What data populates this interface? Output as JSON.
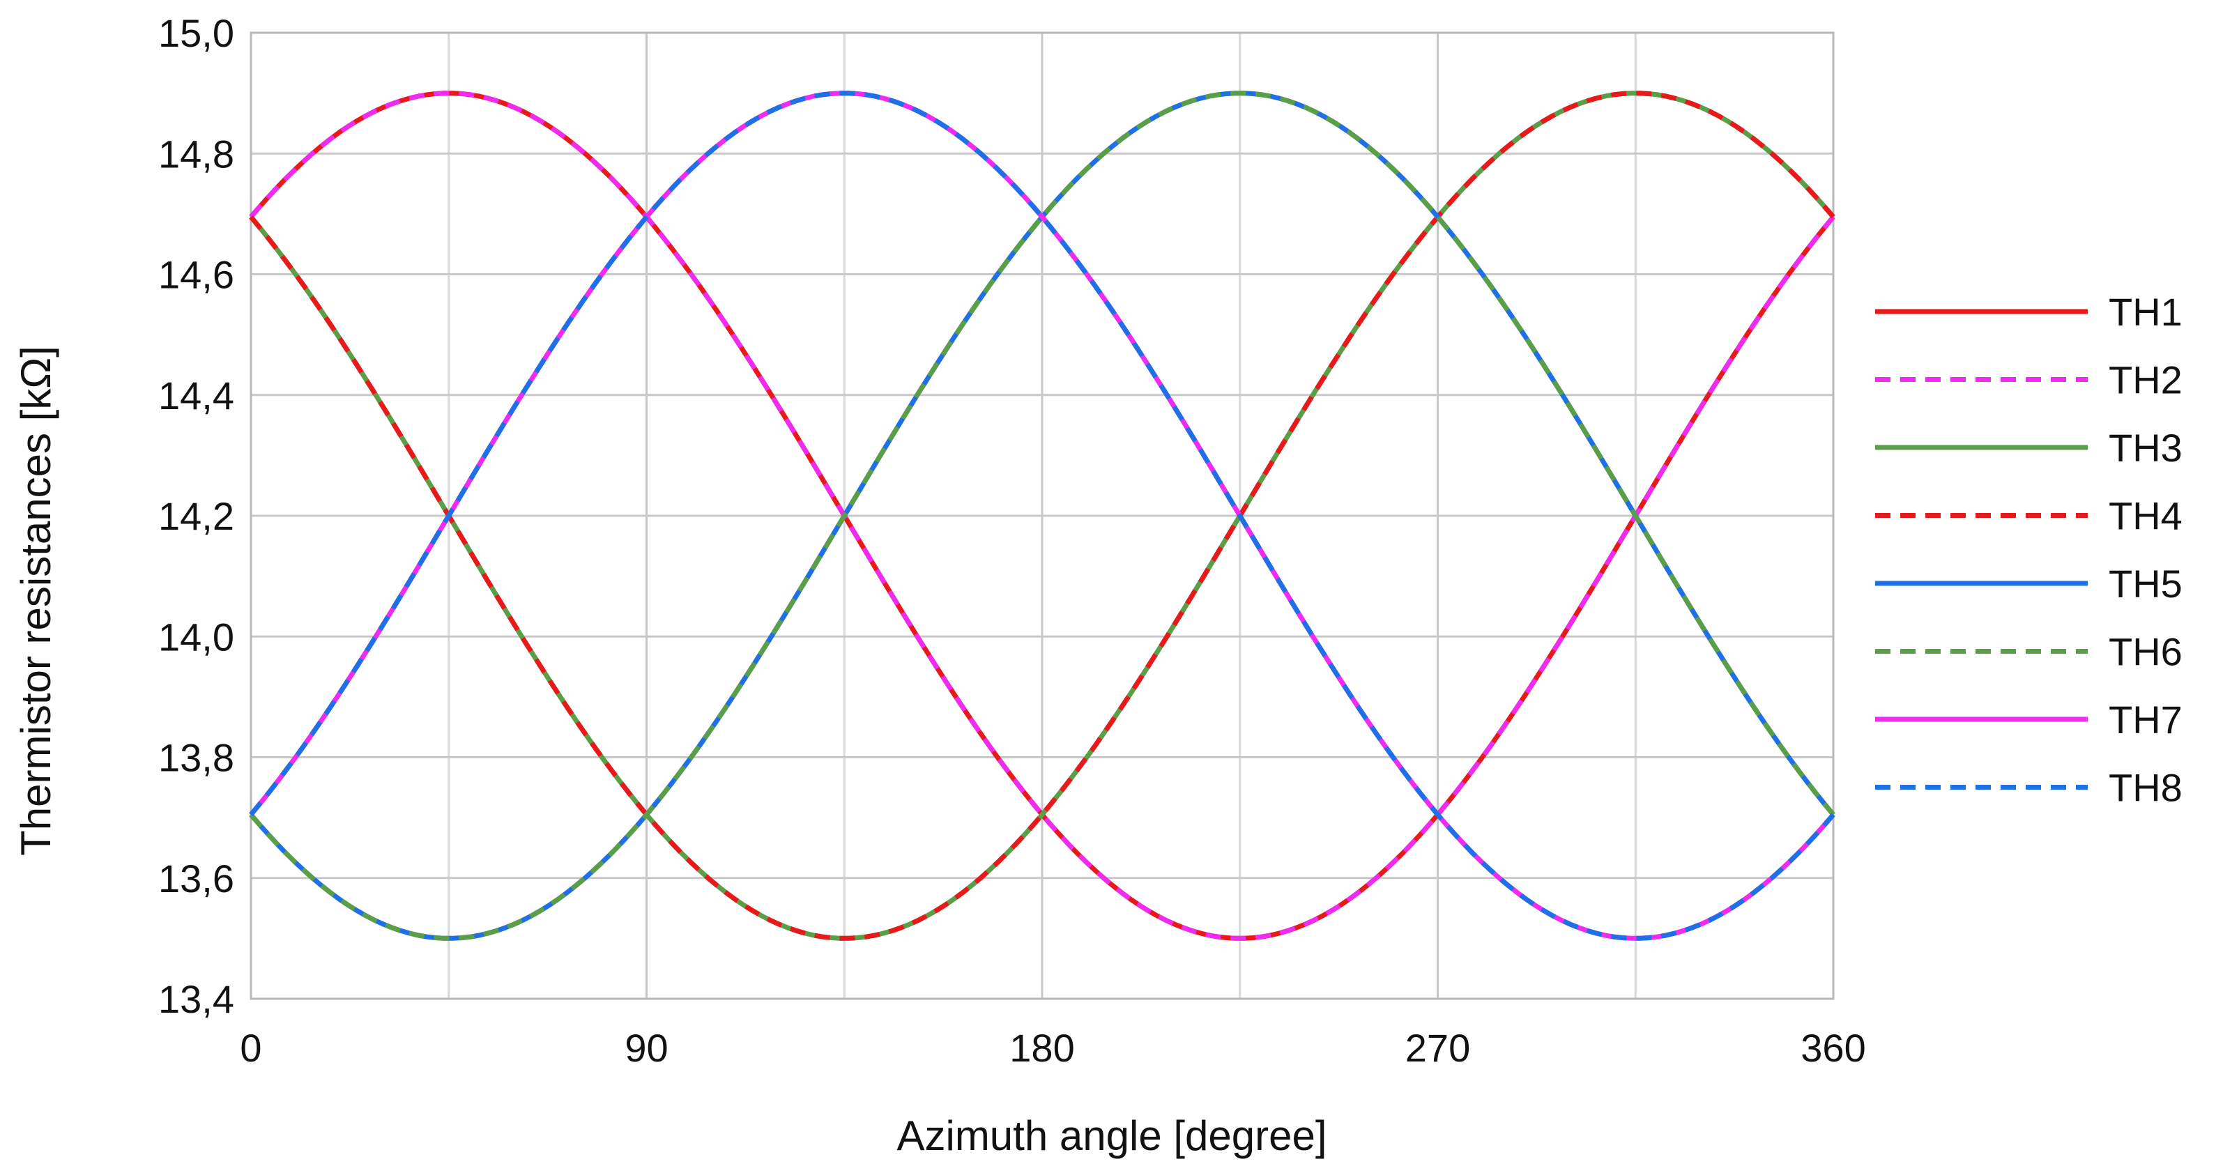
{
  "chart_data": {
    "type": "line",
    "title": "",
    "xlabel": "Azimuth angle [degree]",
    "ylabel": "Thermistor resistances [kΩ]",
    "xlim": [
      0,
      360
    ],
    "ylim": [
      13.4,
      15.0
    ],
    "xticks": [
      0,
      90,
      180,
      270,
      360
    ],
    "xtick_labels": [
      "0",
      "90",
      "180",
      "270",
      "360"
    ],
    "xminor": [
      45,
      135,
      225,
      315
    ],
    "yticks": [
      13.4,
      13.6,
      13.8,
      14.0,
      14.2,
      14.4,
      14.6,
      14.8,
      15.0
    ],
    "ytick_labels": [
      "13,4",
      "13,6",
      "13,8",
      "14,0",
      "14,2",
      "14,4",
      "14,6",
      "14,8",
      "15,0"
    ],
    "grid": true,
    "legend_position": "right",
    "model": {
      "mean": 14.2,
      "amplitude": 0.7,
      "peak_formula": "y = mean + amplitude * cos(azimuth - peak_deg)"
    },
    "x_samples": [
      0,
      15,
      30,
      45,
      60,
      75,
      90,
      105,
      120,
      135,
      150,
      165,
      180,
      195,
      210,
      225,
      240,
      255,
      270,
      285,
      300,
      315,
      330,
      345,
      360
    ],
    "series": [
      {
        "name": "TH1",
        "color": "#e8191b",
        "dash": "solid",
        "peak_deg": 45,
        "values": [
          14.69,
          14.81,
          14.88,
          14.9,
          14.88,
          14.81,
          14.69,
          14.55,
          14.38,
          14.2,
          14.02,
          13.85,
          13.71,
          13.59,
          13.52,
          13.5,
          13.52,
          13.59,
          13.71,
          13.85,
          14.02,
          14.2,
          14.38,
          14.55,
          14.69
        ]
      },
      {
        "name": "TH2",
        "color": "#ee2bee",
        "dash": "dashed",
        "peak_deg": 45,
        "values": [
          14.69,
          14.81,
          14.88,
          14.9,
          14.88,
          14.81,
          14.69,
          14.55,
          14.38,
          14.2,
          14.02,
          13.85,
          13.71,
          13.59,
          13.52,
          13.5,
          13.52,
          13.59,
          13.71,
          13.85,
          14.02,
          14.2,
          14.38,
          14.55,
          14.69
        ]
      },
      {
        "name": "TH3",
        "color": "#5a9e48",
        "dash": "solid",
        "peak_deg": 315,
        "values": [
          14.69,
          14.55,
          14.38,
          14.2,
          14.02,
          13.85,
          13.71,
          13.59,
          13.52,
          13.5,
          13.52,
          13.59,
          13.71,
          13.85,
          14.02,
          14.2,
          14.38,
          14.55,
          14.69,
          14.81,
          14.88,
          14.9,
          14.88,
          14.81,
          14.69
        ]
      },
      {
        "name": "TH4",
        "color": "#e8191b",
        "dash": "dashed",
        "peak_deg": 315,
        "values": [
          14.69,
          14.55,
          14.38,
          14.2,
          14.02,
          13.85,
          13.71,
          13.59,
          13.52,
          13.5,
          13.52,
          13.59,
          13.71,
          13.85,
          14.02,
          14.2,
          14.38,
          14.55,
          14.69,
          14.81,
          14.88,
          14.9,
          14.88,
          14.81,
          14.69
        ]
      },
      {
        "name": "TH5",
        "color": "#1f6fe6",
        "dash": "solid",
        "peak_deg": 225,
        "values": [
          13.71,
          13.59,
          13.52,
          13.5,
          13.52,
          13.59,
          13.71,
          13.85,
          14.02,
          14.2,
          14.38,
          14.55,
          14.69,
          14.81,
          14.88,
          14.9,
          14.88,
          14.81,
          14.69,
          14.55,
          14.38,
          14.2,
          14.02,
          13.85,
          13.71
        ]
      },
      {
        "name": "TH6",
        "color": "#5a9e48",
        "dash": "dashed",
        "peak_deg": 225,
        "values": [
          13.71,
          13.59,
          13.52,
          13.5,
          13.52,
          13.59,
          13.71,
          13.85,
          14.02,
          14.2,
          14.38,
          14.55,
          14.69,
          14.81,
          14.88,
          14.9,
          14.88,
          14.81,
          14.69,
          14.55,
          14.38,
          14.2,
          14.02,
          13.85,
          13.71
        ]
      },
      {
        "name": "TH7",
        "color": "#ee2bee",
        "dash": "solid",
        "peak_deg": 135,
        "values": [
          13.71,
          13.85,
          14.02,
          14.2,
          14.38,
          14.55,
          14.69,
          14.81,
          14.88,
          14.9,
          14.88,
          14.81,
          14.69,
          14.55,
          14.38,
          14.2,
          14.02,
          13.85,
          13.71,
          13.59,
          13.52,
          13.5,
          13.52,
          13.59,
          13.71
        ]
      },
      {
        "name": "TH8",
        "color": "#1f6fe6",
        "dash": "dashed",
        "peak_deg": 135,
        "values": [
          13.71,
          13.85,
          14.02,
          14.2,
          14.38,
          14.55,
          14.69,
          14.81,
          14.88,
          14.9,
          14.88,
          14.81,
          14.69,
          14.55,
          14.38,
          14.2,
          14.02,
          13.85,
          13.71,
          13.59,
          13.52,
          13.5,
          13.52,
          13.59,
          13.71
        ]
      }
    ]
  }
}
